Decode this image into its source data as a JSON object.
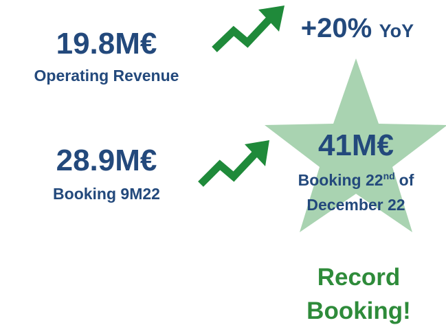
{
  "revenue": {
    "value": "19.8M€",
    "label": "Operating Revenue"
  },
  "growth": {
    "value": "+20%",
    "unit": "YoY"
  },
  "booking_9m": {
    "value": "28.9M€",
    "label": "Booking 9M22"
  },
  "booking_dec": {
    "value": "41M€",
    "label_start": "Booking 22",
    "superscript": "nd",
    "label_end": "of",
    "label_line2": "December 22"
  },
  "callout": [
    "Record",
    "Booking!"
  ]
}
